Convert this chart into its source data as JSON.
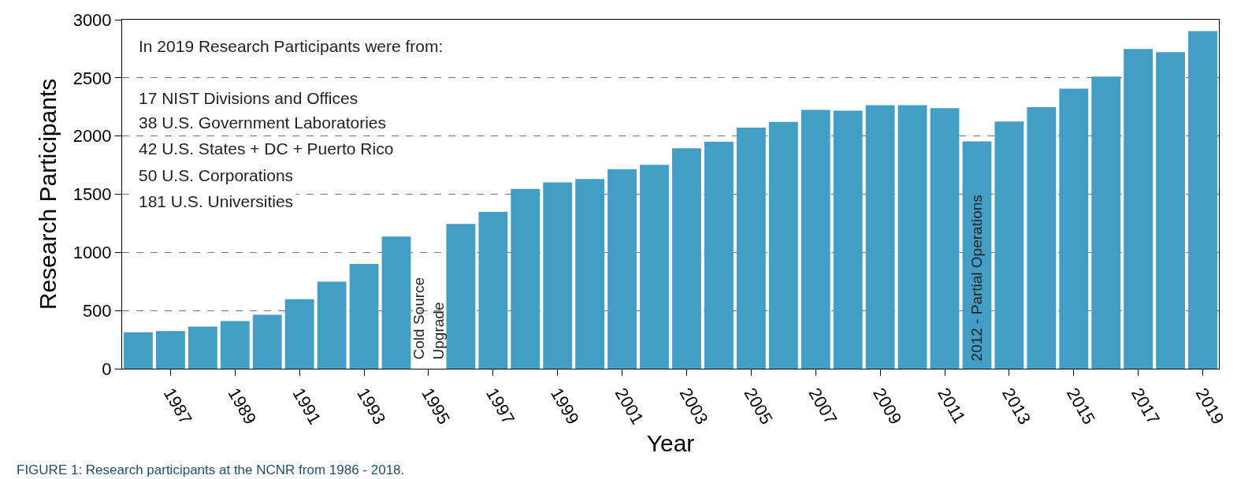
{
  "chart_data": {
    "type": "bar",
    "xlabel": "Year",
    "ylabel": "Research Participants",
    "categories": [
      null,
      "1987",
      null,
      "1989",
      null,
      "1991",
      null,
      "1993",
      null,
      "1995",
      null,
      "1997",
      null,
      "1999",
      null,
      "2001",
      null,
      "2003",
      null,
      "2005",
      null,
      "2007",
      null,
      "2009",
      null,
      "2011",
      null,
      "2013",
      null,
      "2015",
      null,
      "2017",
      null,
      "2019"
    ],
    "values": [
      314,
      324,
      362,
      410,
      464,
      598,
      748,
      900,
      1136,
      null,
      1245,
      1348,
      1545,
      1601,
      1630,
      1715,
      1753,
      1895,
      1951,
      2073,
      2122,
      2225,
      2217,
      2266,
      2266,
      2239,
      1953,
      2124,
      2248,
      2408,
      2511,
      2748,
      2721,
      2901
    ],
    "color": "#429ec4",
    "ylim": [
      0,
      3000
    ],
    "yticks": [
      0,
      500,
      1000,
      1500,
      2000,
      2500,
      3000
    ],
    "grid": "y",
    "annotations": [
      "In 2019 Research Participants were from:",
      "17 NIST Divisions and Offices",
      "38 U.S. Government Laboratories",
      "42 U.S. States + DC + Puerto Rico",
      "50 U.S. Corporations",
      "181 U.S. Universities",
      "Cold Source\nUpgrade",
      "2012 - Partial Operations",
      "FIGURE 1: Research participants at the NCNR from 1986 - 2018."
    ]
  }
}
